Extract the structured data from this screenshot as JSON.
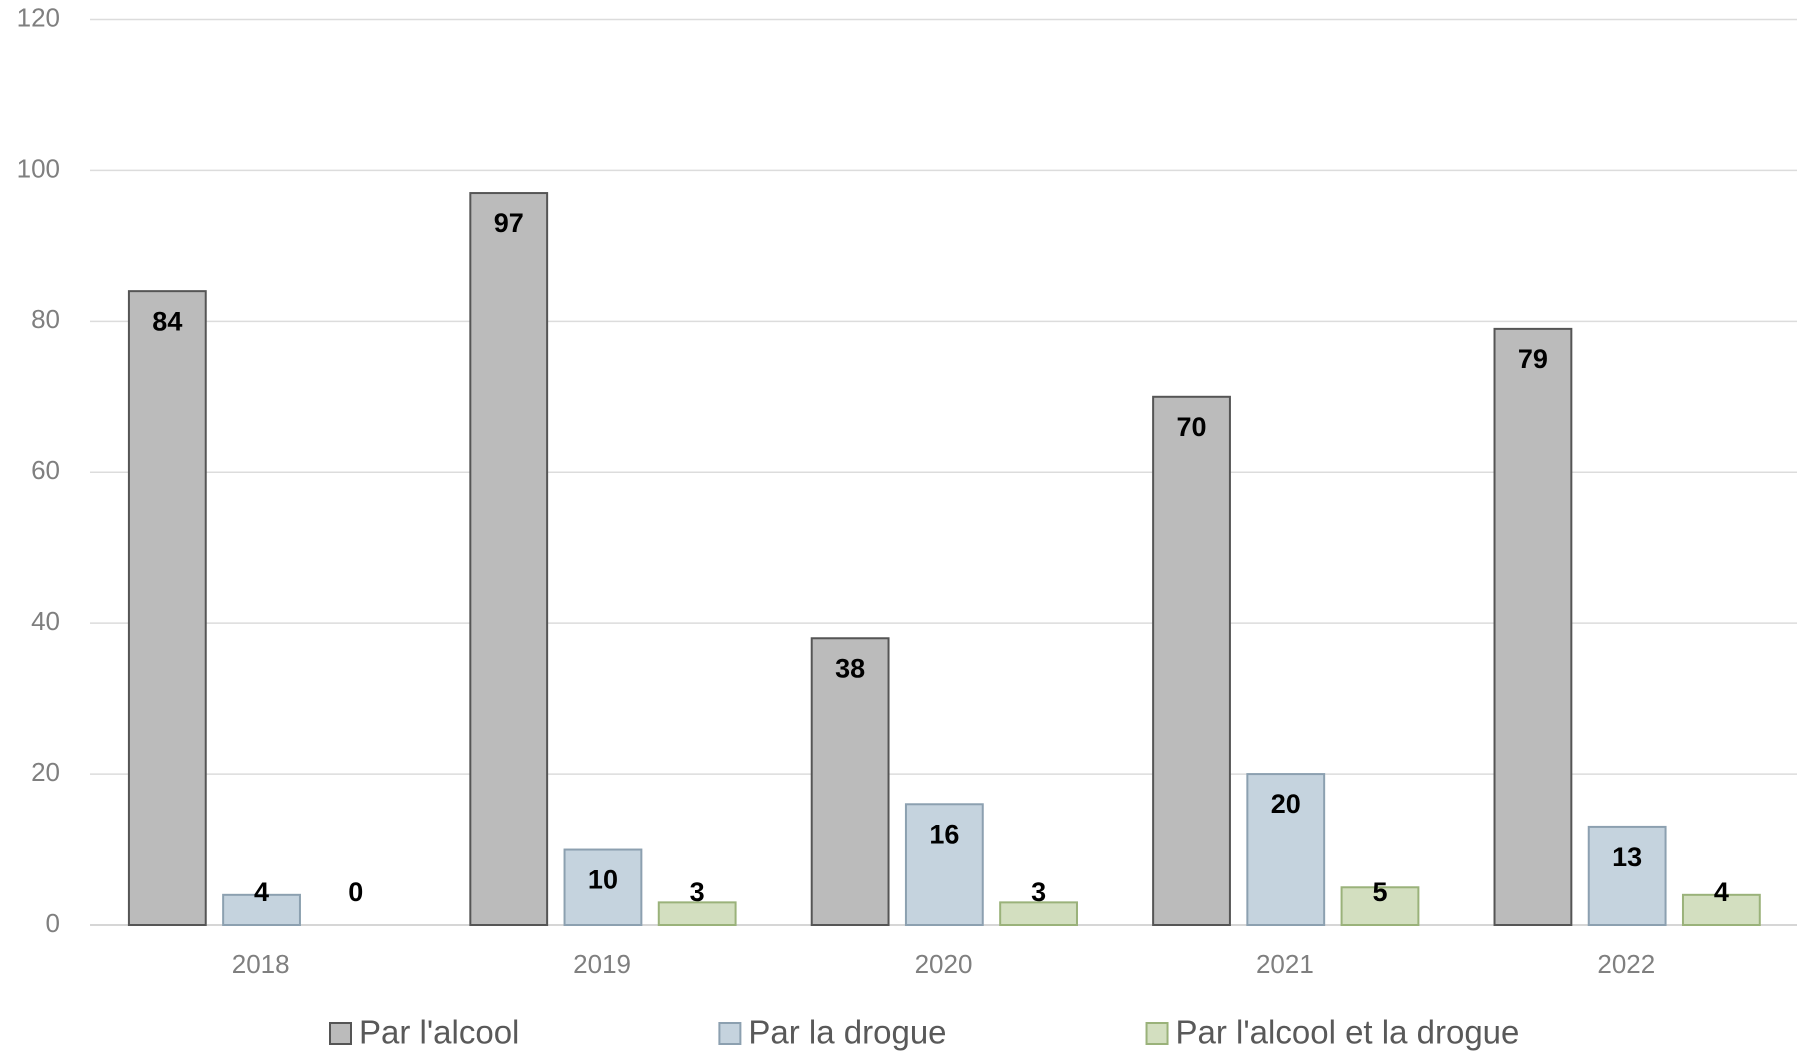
{
  "chart_data": {
    "type": "bar",
    "categories": [
      "2018",
      "2019",
      "2020",
      "2021",
      "2022"
    ],
    "series": [
      {
        "name": "Par l'alcool",
        "color": "#bbbbbb",
        "values": [
          84,
          97,
          38,
          70,
          79
        ]
      },
      {
        "name": "Par la drogue",
        "color": "#c5d3de",
        "values": [
          4,
          10,
          16,
          20,
          13
        ]
      },
      {
        "name": "Par l'alcool et la drogue",
        "color": "#d3dfc0",
        "values": [
          0,
          3,
          3,
          5,
          4
        ]
      }
    ],
    "ylim": [
      0,
      120
    ],
    "yticks": [
      0,
      20,
      40,
      60,
      80,
      100,
      120
    ],
    "grid": true,
    "legend": "bottom"
  }
}
